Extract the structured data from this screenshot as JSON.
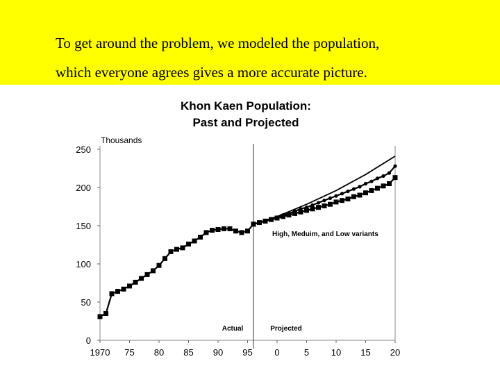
{
  "caption": {
    "line1": "To get around the problem, we modeled the population,",
    "line2": "which everyone agrees gives a more accurate picture."
  },
  "colors": {
    "banner": "#ffff00",
    "ink": "#000000"
  },
  "chart_data": {
    "type": "line",
    "title_line1": "Khon Kaen Population:",
    "title_line2": "Past and Projected",
    "ylabel": "Thousands",
    "xlabel": "",
    "ylim": [
      0,
      250
    ],
    "xlim": [
      1970,
      2020
    ],
    "grid": false,
    "y_ticks": [
      "0",
      "50",
      "100",
      "150",
      "200",
      "250"
    ],
    "x_ticks": [
      "1970",
      "75",
      "80",
      "85",
      "90",
      "95",
      "0",
      "5",
      "10",
      "15",
      "20"
    ],
    "x_tick_years": [
      1970,
      1975,
      1980,
      1985,
      1990,
      1995,
      2000,
      2005,
      2010,
      2015,
      2020
    ],
    "divider_year": 1996,
    "annotations": {
      "actual": "Actual",
      "projected": "Projected",
      "variants": "High, Meduim, and Low variants"
    },
    "series": [
      {
        "marker": "square",
        "x": [
          1970,
          1971,
          1972,
          1973,
          1974,
          1975,
          1976,
          1977,
          1978,
          1979,
          1980,
          1981,
          1982,
          1983,
          1984,
          1985,
          1986,
          1987,
          1988,
          1989,
          1990,
          1991,
          1992,
          1993,
          1994,
          1995,
          1996
        ],
        "values": [
          31,
          35,
          61,
          64,
          67,
          71,
          76,
          81,
          86,
          91,
          98,
          107,
          116,
          119,
          121,
          126,
          130,
          135,
          141,
          144,
          145,
          146,
          146,
          143,
          141,
          143,
          152
        ]
      },
      {
        "marker": "none",
        "x": [
          1996,
          2000,
          2005,
          2010,
          2015,
          2020
        ],
        "values": [
          152,
          162,
          178,
          196,
          217,
          241
        ]
      },
      {
        "marker": "dot",
        "x": [
          1996,
          1997,
          1998,
          1999,
          2000,
          2001,
          2002,
          2003,
          2004,
          2005,
          2006,
          2007,
          2008,
          2009,
          2010,
          2011,
          2012,
          2013,
          2014,
          2015,
          2016,
          2017,
          2018,
          2019,
          2020
        ],
        "values": [
          152,
          154,
          157,
          159,
          161,
          164,
          166,
          169,
          172,
          174,
          177,
          180,
          183,
          186,
          189,
          192,
          195,
          198,
          201,
          205,
          208,
          212,
          215,
          219,
          228
        ]
      },
      {
        "marker": "square",
        "x": [
          1996,
          1997,
          1998,
          1999,
          2000,
          2001,
          2002,
          2003,
          2004,
          2005,
          2006,
          2007,
          2008,
          2009,
          2010,
          2011,
          2012,
          2013,
          2014,
          2015,
          2016,
          2017,
          2018,
          2019,
          2020
        ],
        "values": [
          152,
          154,
          156,
          158,
          160,
          162,
          164,
          166,
          168,
          170,
          172,
          174,
          176,
          178,
          181,
          183,
          185,
          188,
          190,
          193,
          196,
          199,
          202,
          205,
          213
        ]
      }
    ]
  }
}
